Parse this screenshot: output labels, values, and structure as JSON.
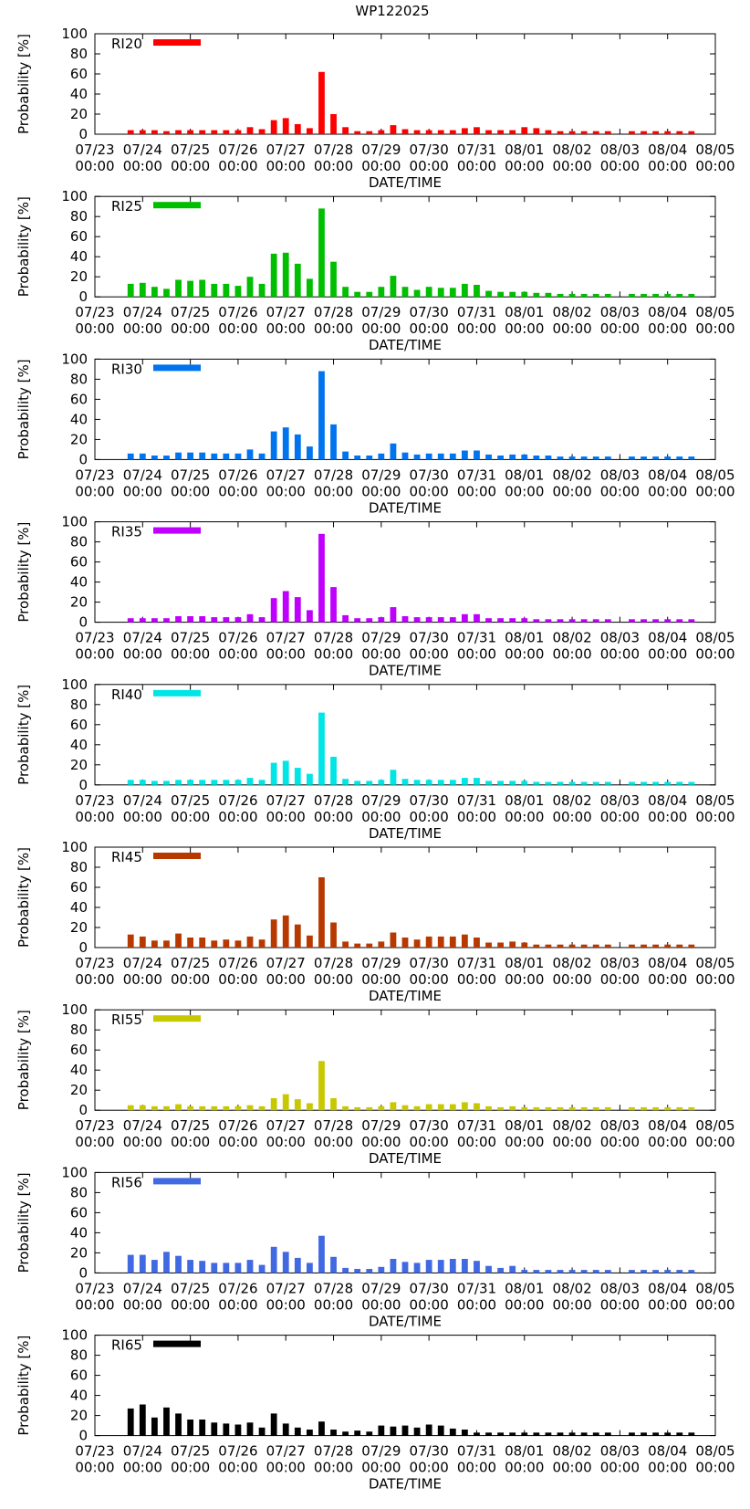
{
  "title": "WP122025",
  "chart_data": {
    "type": "bar",
    "xlabel": "DATE/TIME",
    "ylabel": "Probability [%]",
    "ylim": [
      0,
      100
    ],
    "yticks": [
      0,
      20,
      40,
      60,
      80,
      100
    ],
    "grid": false,
    "legend_position": "top-left",
    "x_tick_dates": [
      "07/23",
      "07/24",
      "07/25",
      "07/26",
      "07/27",
      "07/28",
      "07/29",
      "07/30",
      "07/31",
      "08/01",
      "08/02",
      "08/03",
      "08/04",
      "08/05"
    ],
    "x_tick_time": "00:00",
    "x_unit": "days since 07/23 00:00",
    "x_step": 0.25,
    "x": [
      0.75,
      1.0,
      1.25,
      1.5,
      1.75,
      2.0,
      2.25,
      2.5,
      2.75,
      3.0,
      3.25,
      3.5,
      3.75,
      4.0,
      4.25,
      4.5,
      4.75,
      5.0,
      5.25,
      5.5,
      5.75,
      6.0,
      6.25,
      6.5,
      6.75,
      7.0,
      7.25,
      7.5,
      7.75,
      8.0,
      8.25,
      8.5,
      8.75,
      9.0,
      9.25,
      9.5,
      9.75,
      10.0,
      10.25,
      10.5,
      10.75,
      11.25,
      11.5,
      11.75,
      12.0,
      12.25,
      12.5
    ],
    "series": [
      {
        "name": "RI20",
        "color": "#ff0000",
        "values": [
          4,
          4,
          4,
          3,
          4,
          4,
          4,
          4,
          4,
          4,
          7,
          5,
          14,
          16,
          10,
          6,
          62,
          20,
          7,
          3,
          3,
          4,
          9,
          5,
          4,
          4,
          4,
          4,
          6,
          7,
          4,
          4,
          4,
          7,
          6,
          4,
          3,
          3,
          3,
          3,
          3,
          3,
          3,
          3,
          3,
          3,
          3
        ]
      },
      {
        "name": "RI25",
        "color": "#00bf00",
        "values": [
          13,
          14,
          10,
          8,
          17,
          16,
          17,
          13,
          13,
          11,
          20,
          13,
          43,
          44,
          33,
          18,
          88,
          35,
          10,
          5,
          5,
          10,
          21,
          10,
          7,
          10,
          9,
          9,
          13,
          12,
          6,
          5,
          5,
          5,
          4,
          4,
          3,
          3,
          3,
          3,
          3,
          3,
          3,
          3,
          3,
          3,
          3
        ]
      },
      {
        "name": "RI30",
        "color": "#0073ee",
        "values": [
          6,
          6,
          4,
          4,
          7,
          7,
          7,
          6,
          6,
          6,
          10,
          6,
          28,
          32,
          25,
          13,
          88,
          35,
          8,
          4,
          4,
          6,
          16,
          7,
          5,
          6,
          6,
          6,
          9,
          9,
          5,
          4,
          5,
          5,
          4,
          4,
          3,
          3,
          3,
          3,
          3,
          3,
          3,
          3,
          3,
          3,
          3
        ]
      },
      {
        "name": "RI35",
        "color": "#bf00ff",
        "values": [
          4,
          4,
          4,
          4,
          6,
          6,
          6,
          5,
          5,
          5,
          8,
          5,
          24,
          31,
          25,
          12,
          88,
          35,
          7,
          4,
          4,
          5,
          15,
          6,
          5,
          5,
          5,
          5,
          8,
          8,
          4,
          4,
          4,
          4,
          3,
          3,
          3,
          3,
          3,
          3,
          3,
          3,
          3,
          3,
          3,
          3,
          3
        ]
      },
      {
        "name": "RI40",
        "color": "#00e5e5",
        "values": [
          5,
          5,
          4,
          4,
          5,
          5,
          5,
          5,
          5,
          5,
          7,
          5,
          22,
          24,
          17,
          11,
          72,
          28,
          6,
          4,
          4,
          5,
          15,
          6,
          5,
          5,
          5,
          5,
          7,
          7,
          4,
          4,
          4,
          4,
          3,
          3,
          3,
          3,
          3,
          3,
          3,
          3,
          3,
          3,
          3,
          3,
          3
        ]
      },
      {
        "name": "RI45",
        "color": "#b83900",
        "values": [
          13,
          11,
          7,
          7,
          14,
          10,
          10,
          7,
          8,
          7,
          11,
          8,
          28,
          32,
          23,
          12,
          70,
          25,
          6,
          4,
          4,
          6,
          15,
          10,
          8,
          11,
          11,
          11,
          13,
          10,
          5,
          5,
          6,
          5,
          3,
          3,
          3,
          3,
          3,
          3,
          3,
          3,
          3,
          3,
          3,
          3,
          3
        ]
      },
      {
        "name": "RI55",
        "color": "#c8c800",
        "values": [
          5,
          5,
          4,
          4,
          6,
          4,
          4,
          4,
          4,
          4,
          5,
          4,
          12,
          16,
          11,
          7,
          49,
          12,
          4,
          3,
          3,
          4,
          8,
          5,
          4,
          6,
          6,
          6,
          8,
          7,
          4,
          3,
          4,
          3,
          3,
          3,
          3,
          3,
          3,
          3,
          3,
          3,
          3,
          3,
          3,
          3,
          3
        ]
      },
      {
        "name": "RI56",
        "color": "#4169e1",
        "values": [
          18,
          18,
          13,
          21,
          17,
          13,
          12,
          10,
          10,
          10,
          13,
          8,
          26,
          21,
          15,
          10,
          37,
          16,
          5,
          4,
          4,
          6,
          14,
          11,
          10,
          13,
          13,
          14,
          14,
          12,
          7,
          5,
          7,
          3,
          3,
          3,
          3,
          3,
          3,
          3,
          3,
          3,
          3,
          3,
          3,
          3,
          3
        ]
      },
      {
        "name": "RI65",
        "color": "#000000",
        "values": [
          27,
          31,
          18,
          28,
          22,
          16,
          16,
          13,
          12,
          11,
          13,
          8,
          22,
          12,
          8,
          6,
          14,
          6,
          4,
          5,
          4,
          10,
          9,
          10,
          8,
          11,
          10,
          7,
          6,
          3,
          3,
          3,
          3,
          3,
          3,
          3,
          3,
          3,
          3,
          3,
          3,
          3,
          3,
          3,
          3,
          3,
          3
        ]
      }
    ]
  }
}
